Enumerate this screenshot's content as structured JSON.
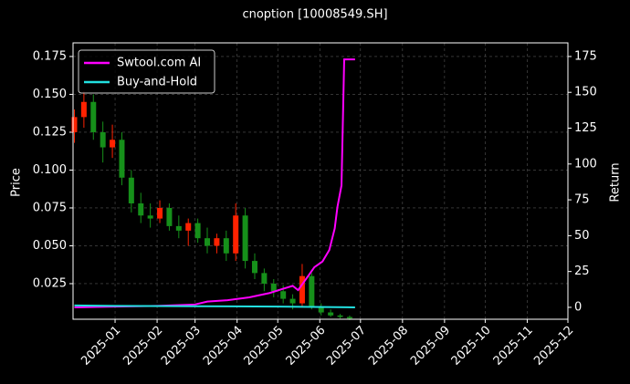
{
  "chart_data": {
    "type": "candlestick",
    "title": "cnoption [10008549.SH]",
    "ylabel": "Price",
    "y2label": "Return",
    "grid": true,
    "legend": "upper left",
    "up_color": "#ff2200",
    "down_color": "#16901a",
    "xlim": [
      "2024-12",
      "2025-12"
    ],
    "xticks": [
      "2025-01",
      "2025-02",
      "2025-03",
      "2025-04",
      "2025-05",
      "2025-06",
      "2025-07",
      "2025-08",
      "2025-09",
      "2025-10",
      "2025-11",
      "2025-12"
    ],
    "ylim": [
      0.0015,
      0.184
    ],
    "yticks": [
      0.025,
      {
        "value": 0.05,
        "label": "0.050"
      },
      0.075,
      {
        "value": 0.1,
        "label": "0.100"
      },
      0.125,
      {
        "value": 0.15,
        "label": "0.150"
      },
      0.175
    ],
    "y2lim": [
      -8.3,
      184.5
    ],
    "y2ticks": [
      0,
      25,
      50,
      75,
      100,
      125,
      150,
      175
    ],
    "candles": {
      "x": [
        "2024-12-02",
        "2024-12-09",
        "2024-12-16",
        "2024-12-23",
        "2024-12-30",
        "2025-01-06",
        "2025-01-13",
        "2025-01-20",
        "2025-01-27",
        "2025-02-03",
        "2025-02-10",
        "2025-02-17",
        "2025-02-24",
        "2025-03-03",
        "2025-03-10",
        "2025-03-17",
        "2025-03-24",
        "2025-03-31",
        "2025-04-07",
        "2025-04-14",
        "2025-04-21",
        "2025-04-28",
        "2025-05-05",
        "2025-05-12",
        "2025-05-19",
        "2025-05-26",
        "2025-06-02",
        "2025-06-09",
        "2025-06-16",
        "2025-06-23"
      ],
      "open": [
        0.125,
        0.135,
        0.145,
        0.125,
        0.115,
        0.12,
        0.095,
        0.078,
        0.07,
        0.068,
        0.075,
        0.063,
        0.06,
        0.065,
        0.055,
        0.05,
        0.055,
        0.045,
        0.07,
        0.04,
        0.032,
        0.025,
        0.02,
        0.015,
        0.012,
        0.03,
        0.01,
        0.006,
        0.004,
        0.003
      ],
      "high": [
        0.14,
        0.152,
        0.15,
        0.132,
        0.13,
        0.125,
        0.1,
        0.085,
        0.078,
        0.08,
        0.078,
        0.07,
        0.068,
        0.068,
        0.062,
        0.058,
        0.06,
        0.078,
        0.075,
        0.045,
        0.035,
        0.028,
        0.024,
        0.018,
        0.038,
        0.032,
        0.012,
        0.008,
        0.005,
        0.004
      ],
      "low": [
        0.118,
        0.128,
        0.12,
        0.105,
        0.108,
        0.09,
        0.072,
        0.065,
        0.062,
        0.065,
        0.06,
        0.055,
        0.05,
        0.052,
        0.045,
        0.045,
        0.04,
        0.04,
        0.035,
        0.028,
        0.02,
        0.016,
        0.012,
        0.008,
        0.01,
        0.008,
        0.004,
        0.003,
        0.002,
        0.001
      ],
      "close": [
        0.135,
        0.145,
        0.125,
        0.115,
        0.12,
        0.095,
        0.078,
        0.07,
        0.068,
        0.075,
        0.063,
        0.06,
        0.065,
        0.055,
        0.05,
        0.055,
        0.045,
        0.07,
        0.04,
        0.032,
        0.025,
        0.02,
        0.015,
        0.012,
        0.03,
        0.01,
        0.006,
        0.004,
        0.003,
        0.002
      ]
    },
    "series": [
      {
        "name": "Swtool.com AI",
        "color": "#ff00ff",
        "axis": "y2",
        "x": [
          "2024-12-02",
          "2025-01-01",
          "2025-02-01",
          "2025-03-01",
          "2025-03-10",
          "2025-03-25",
          "2025-04-10",
          "2025-04-25",
          "2025-05-05",
          "2025-05-12",
          "2025-05-16",
          "2025-05-22",
          "2025-05-28",
          "2025-06-03",
          "2025-06-08",
          "2025-06-12",
          "2025-06-14",
          "2025-06-17",
          "2025-06-19",
          "2025-06-27"
        ],
        "values": [
          0,
          0.5,
          1,
          2,
          4,
          5,
          7,
          10,
          13,
          15,
          12,
          20,
          28,
          32,
          40,
          55,
          70,
          85,
          173,
          173
        ]
      },
      {
        "name": "Buy-and-Hold",
        "color": "#22e0e0",
        "axis": "y2",
        "x": [
          "2024-12-02",
          "2025-01-01",
          "2025-03-01",
          "2025-05-01",
          "2025-06-27"
        ],
        "values": [
          1.3,
          1,
          0.8,
          0.5,
          0
        ]
      }
    ]
  }
}
